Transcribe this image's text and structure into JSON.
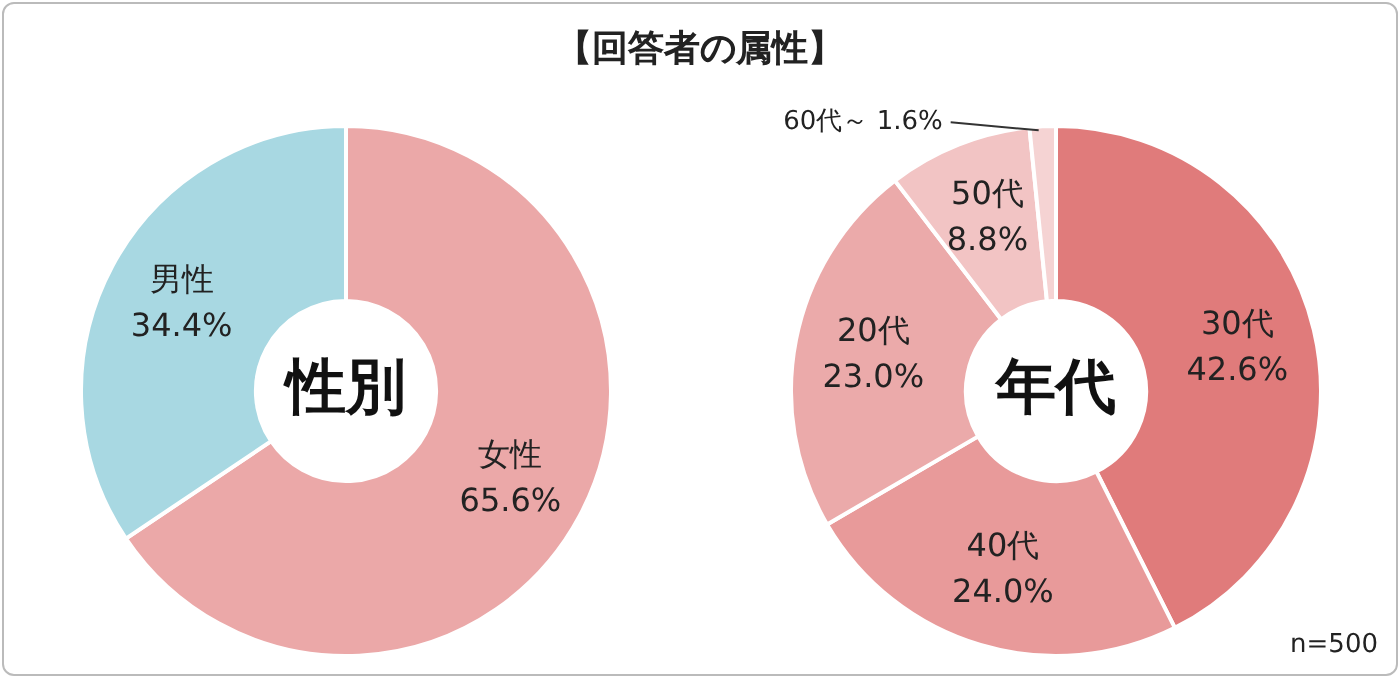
{
  "chart_data": [
    {
      "type": "donut",
      "title": "【回答者の属性】",
      "subtitle": "性別",
      "categories": [
        "女性",
        "男性"
      ],
      "values": [
        65.6,
        34.4
      ],
      "colors": [
        "#eba8a8",
        "#a8d8e2"
      ],
      "value_labels": [
        "65.6%",
        "34.4%"
      ],
      "legend": false
    },
    {
      "type": "donut",
      "subtitle": "年代",
      "categories": [
        "30代",
        "40代",
        "20代",
        "50代",
        "60代～"
      ],
      "values": [
        42.6,
        24.0,
        23.0,
        8.8,
        1.6
      ],
      "colors": [
        "#e07b7b",
        "#e89a9a",
        "#ebaaaa",
        "#f2c4c4",
        "#f5d3d3"
      ],
      "value_labels": [
        "42.6%",
        "24.0%",
        "23.0%",
        "8.8%",
        "1.6%"
      ],
      "annotations": [
        "n=500"
      ],
      "legend": false
    }
  ]
}
